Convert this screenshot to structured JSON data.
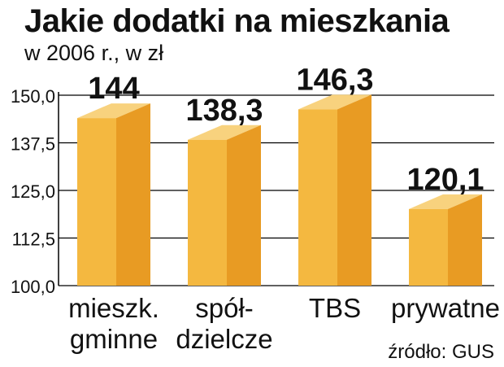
{
  "header": {
    "title": "Jakie dodatki na mieszkania",
    "subtitle": "w 2006 r., w zł"
  },
  "source": "źródło: GUS",
  "colors": {
    "bar_front": "#F4B840",
    "bar_side": "#E89B23",
    "bar_top": "#F8D27E",
    "axis": "#000000",
    "grid": "#000000"
  },
  "chart_data": {
    "type": "bar",
    "title": "Jakie dodatki na mieszkania",
    "subtitle": "w 2006 r., w zł",
    "categories": [
      [
        "mieszk.",
        "gminne"
      ],
      [
        "spół-",
        "dzielcze"
      ],
      [
        "TBS"
      ],
      [
        "prywatne"
      ]
    ],
    "values": [
      144,
      138.3,
      146.3,
      120.1
    ],
    "value_labels": [
      "144",
      "138,3",
      "146,3",
      "120,1"
    ],
    "yticks": [
      150,
      137.5,
      125,
      112.5,
      100
    ],
    "ytick_labels": [
      "150,0",
      "137,5",
      "125,0",
      "112,5",
      "100,0"
    ],
    "ylim": [
      100,
      150
    ],
    "grid": true,
    "style": "3d-bars"
  }
}
